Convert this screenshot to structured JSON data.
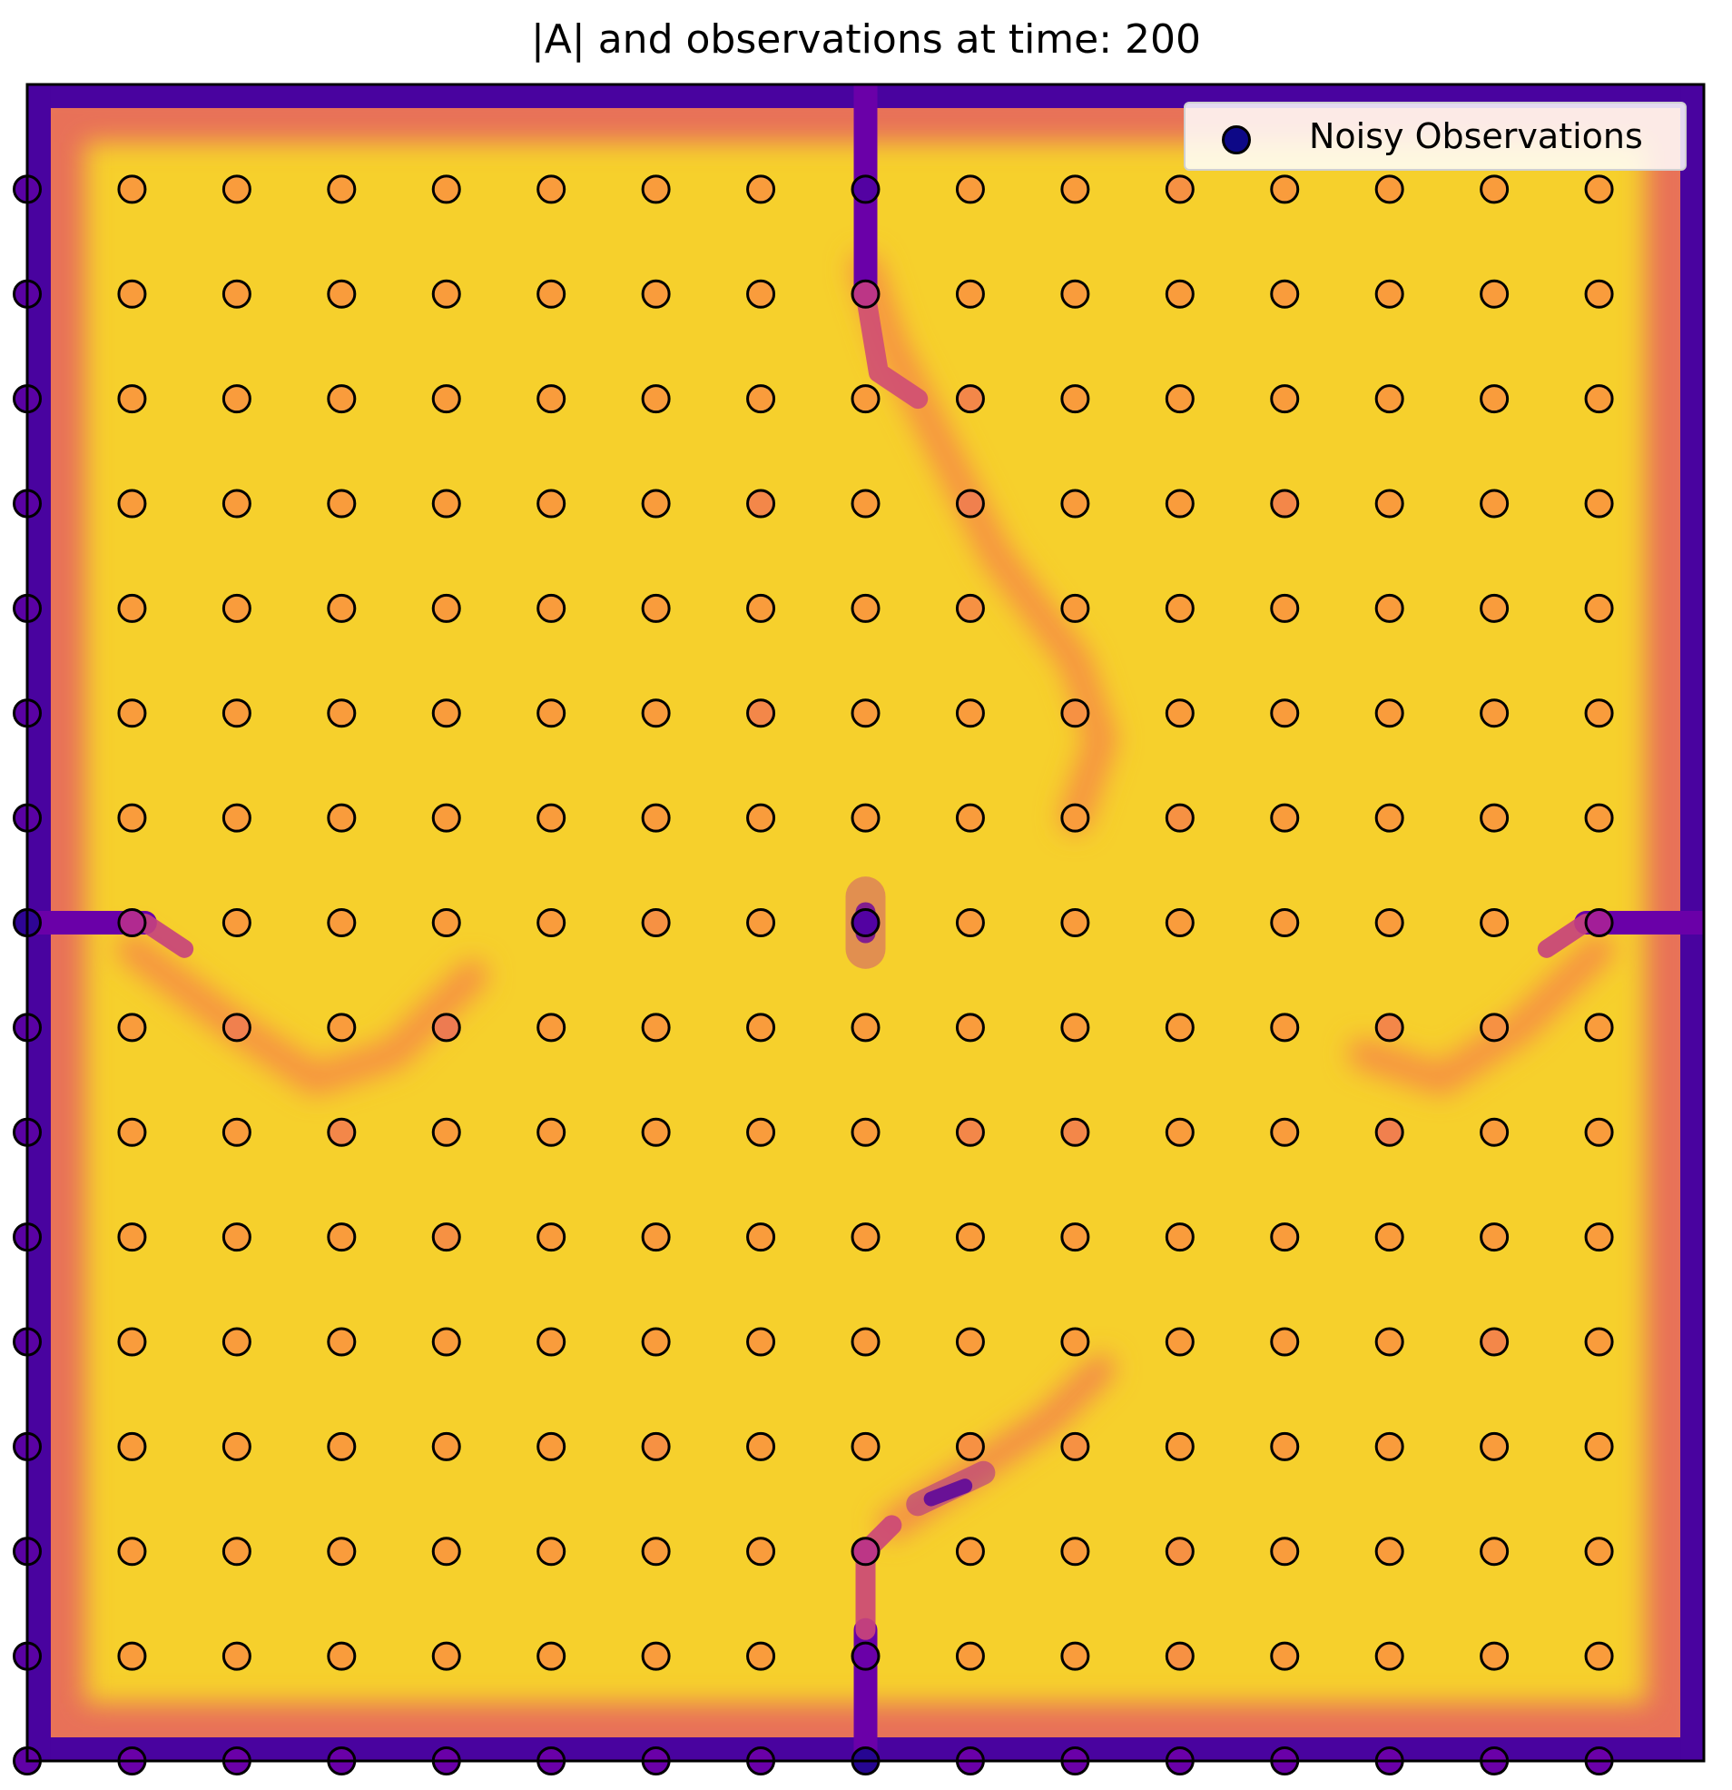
{
  "chart_data": {
    "type": "heatmap",
    "title": "|A| and observations at time: 200",
    "xlabel": "",
    "ylabel": "",
    "colormap": "plasma",
    "legend": {
      "position": "top-right",
      "entries": [
        {
          "label": "Noisy Observations",
          "marker": "circle",
          "color": "#0d0887"
        }
      ]
    },
    "grid": false,
    "domain": {
      "x": [
        0,
        64
      ],
      "y": [
        0,
        64
      ]
    },
    "value_range": [
      0,
      1
    ],
    "background_level": 0.97,
    "observations": {
      "x": [
        0,
        4,
        8,
        12,
        16,
        20,
        24,
        28,
        32,
        36,
        40,
        44,
        48,
        52,
        56,
        60
      ],
      "y": [
        60,
        56,
        52,
        48,
        44,
        40,
        36,
        32,
        28,
        24,
        20,
        16,
        12,
        8,
        4,
        0
      ],
      "values": [
        [
          0.2,
          0.92,
          0.92,
          0.92,
          0.92,
          0.92,
          0.92,
          0.92,
          0.18,
          0.92,
          0.92,
          0.9,
          0.92,
          0.92,
          0.92,
          0.92
        ],
        [
          0.2,
          0.92,
          0.92,
          0.92,
          0.92,
          0.92,
          0.92,
          0.92,
          0.55,
          0.92,
          0.92,
          0.92,
          0.92,
          0.92,
          0.92,
          0.92
        ],
        [
          0.2,
          0.92,
          0.92,
          0.92,
          0.92,
          0.92,
          0.92,
          0.92,
          0.92,
          0.88,
          0.92,
          0.92,
          0.92,
          0.92,
          0.92,
          0.92
        ],
        [
          0.2,
          0.92,
          0.92,
          0.92,
          0.92,
          0.92,
          0.92,
          0.88,
          0.92,
          0.86,
          0.92,
          0.92,
          0.88,
          0.92,
          0.92,
          0.92
        ],
        [
          0.2,
          0.92,
          0.92,
          0.92,
          0.92,
          0.92,
          0.92,
          0.92,
          0.92,
          0.9,
          0.92,
          0.92,
          0.92,
          0.92,
          0.92,
          0.92
        ],
        [
          0.2,
          0.92,
          0.92,
          0.92,
          0.92,
          0.92,
          0.92,
          0.88,
          0.92,
          0.92,
          0.9,
          0.92,
          0.92,
          0.92,
          0.92,
          0.92
        ],
        [
          0.2,
          0.92,
          0.92,
          0.92,
          0.92,
          0.92,
          0.92,
          0.92,
          0.92,
          0.92,
          0.92,
          0.9,
          0.92,
          0.92,
          0.92,
          0.92
        ],
        [
          0.08,
          0.5,
          0.92,
          0.92,
          0.92,
          0.92,
          0.9,
          0.92,
          0.18,
          0.92,
          0.92,
          0.92,
          0.92,
          0.92,
          0.92,
          0.45
        ],
        [
          0.2,
          0.92,
          0.86,
          0.92,
          0.84,
          0.92,
          0.92,
          0.92,
          0.92,
          0.92,
          0.92,
          0.92,
          0.92,
          0.88,
          0.9,
          0.92
        ],
        [
          0.2,
          0.92,
          0.92,
          0.88,
          0.92,
          0.92,
          0.92,
          0.92,
          0.92,
          0.88,
          0.88,
          0.92,
          0.92,
          0.86,
          0.92,
          0.92
        ],
        [
          0.2,
          0.92,
          0.92,
          0.92,
          0.9,
          0.92,
          0.92,
          0.92,
          0.92,
          0.92,
          0.92,
          0.92,
          0.92,
          0.92,
          0.92,
          0.92
        ],
        [
          0.2,
          0.92,
          0.92,
          0.92,
          0.92,
          0.92,
          0.92,
          0.92,
          0.92,
          0.92,
          0.92,
          0.92,
          0.92,
          0.92,
          0.88,
          0.92
        ],
        [
          0.2,
          0.92,
          0.92,
          0.92,
          0.92,
          0.92,
          0.9,
          0.92,
          0.92,
          0.9,
          0.9,
          0.92,
          0.92,
          0.92,
          0.92,
          0.92
        ],
        [
          0.2,
          0.92,
          0.92,
          0.92,
          0.92,
          0.92,
          0.92,
          0.92,
          0.55,
          0.92,
          0.92,
          0.9,
          0.92,
          0.92,
          0.92,
          0.92
        ],
        [
          0.2,
          0.92,
          0.92,
          0.92,
          0.92,
          0.92,
          0.92,
          0.92,
          0.25,
          0.92,
          0.92,
          0.9,
          0.92,
          0.92,
          0.92,
          0.92
        ],
        [
          0.22,
          0.25,
          0.25,
          0.25,
          0.25,
          0.25,
          0.25,
          0.25,
          0.06,
          0.25,
          0.25,
          0.25,
          0.25,
          0.25,
          0.25,
          0.25
        ]
      ]
    }
  }
}
